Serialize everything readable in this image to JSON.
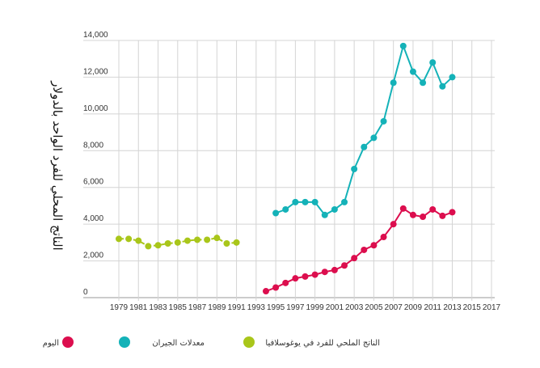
{
  "chart_data": {
    "type": "line",
    "ylabel": "الناتج المحلي للفرد الواحد بالدولار",
    "xlabel": "",
    "title": "",
    "ylim": [
      0,
      14000
    ],
    "xlim": [
      1978,
      2017
    ],
    "y_ticks": [
      {
        "value": 0,
        "label": "0"
      },
      {
        "value": 2000,
        "label": "2,000"
      },
      {
        "value": 4000,
        "label": "4,000"
      },
      {
        "value": 6000,
        "label": "6,000"
      },
      {
        "value": 8000,
        "label": "8,000"
      },
      {
        "value": 10000,
        "label": "10,000"
      },
      {
        "value": 12000,
        "label": "12,000"
      },
      {
        "value": 14000,
        "label": "14,000"
      }
    ],
    "x_ticks": [
      {
        "value": 1979,
        "label": "1979"
      },
      {
        "value": 1981,
        "label": "1981"
      },
      {
        "value": 1983,
        "label": "1983"
      },
      {
        "value": 1985,
        "label": "1985"
      },
      {
        "value": 1987,
        "label": "1987"
      },
      {
        "value": 1989,
        "label": "1989"
      },
      {
        "value": 1991,
        "label": "1991"
      },
      {
        "value": 1993,
        "label": "1993"
      },
      {
        "value": 1995,
        "label": "1995"
      },
      {
        "value": 1997,
        "label": "1997"
      },
      {
        "value": 1999,
        "label": "1999"
      },
      {
        "value": 2001,
        "label": "2001"
      },
      {
        "value": 2003,
        "label": "2003"
      },
      {
        "value": 2005,
        "label": "2005"
      },
      {
        "value": 2007,
        "label": "2007"
      },
      {
        "value": 2009,
        "label": "2009"
      },
      {
        "value": 2011,
        "label": "2011"
      },
      {
        "value": 2013,
        "label": "2013"
      },
      {
        "value": 2015,
        "label": "2015"
      },
      {
        "value": 2017,
        "label": "2017"
      }
    ],
    "grid": true,
    "legend_position": "bottom",
    "series": [
      {
        "name": "الناتج الملحي للفرد في يوغوسلافيا",
        "color": "#a9c61a",
        "x": [
          1979,
          1980,
          1981,
          1982,
          1983,
          1984,
          1985,
          1986,
          1987,
          1988,
          1989,
          1990,
          1991
        ],
        "y": [
          3200,
          3200,
          3100,
          2800,
          2850,
          2950,
          3000,
          3100,
          3150,
          3150,
          3250,
          2950,
          3000
        ]
      },
      {
        "name": "معدلات الجيران",
        "color": "#14b2b8",
        "x": [
          1995,
          1996,
          1997,
          1998,
          1999,
          2000,
          2001,
          2002,
          2003,
          2004,
          2005,
          2006,
          2007,
          2008,
          2009,
          2010,
          2011,
          2012,
          2013
        ],
        "y": [
          4600,
          4800,
          5200,
          5200,
          5200,
          4500,
          4800,
          5200,
          7000,
          8200,
          8700,
          9600,
          11700,
          13700,
          12300,
          11700,
          12800,
          11500,
          12000
        ]
      },
      {
        "name": "اليوم",
        "color": "#dc0e4e",
        "x": [
          1994,
          1995,
          1996,
          1997,
          1998,
          1999,
          2000,
          2001,
          2002,
          2003,
          2004,
          2005,
          2006,
          2007,
          2008,
          2009,
          2010,
          2011,
          2012,
          2013
        ],
        "y": [
          350,
          550,
          800,
          1050,
          1150,
          1250,
          1400,
          1500,
          1750,
          2150,
          2600,
          2850,
          3300,
          4000,
          4850,
          4500,
          4400,
          4800,
          4450,
          4650
        ]
      }
    ]
  }
}
